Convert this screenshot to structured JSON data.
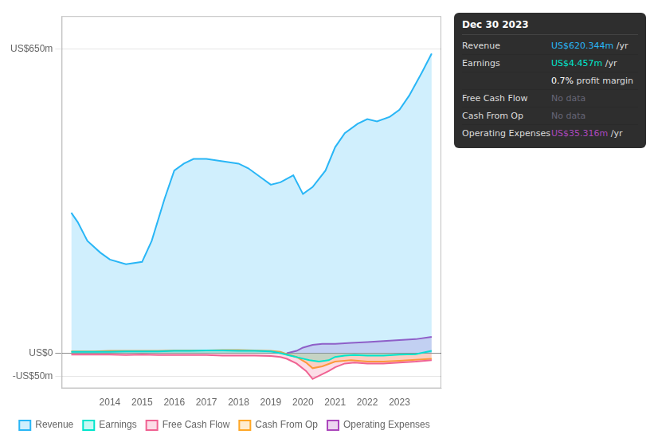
{
  "chart_data": {
    "type": "area",
    "xlim": [
      2012.5,
      2024.3
    ],
    "xticks": [
      2014,
      2015,
      2016,
      2017,
      2018,
      2019,
      2020,
      2021,
      2022,
      2023
    ],
    "ylim": [
      -75,
      720
    ],
    "yticks": [
      {
        "value": -50,
        "label": "-US$50m"
      },
      {
        "value": 0,
        "label": "US$0"
      },
      {
        "value": 650,
        "label": "US$650m"
      }
    ],
    "grid": true,
    "legend": "bottom",
    "series": [
      {
        "name": "Revenue",
        "color": "#29b6f6",
        "x": [
          2012.8,
          2013.0,
          2013.3,
          2013.7,
          2014.0,
          2014.5,
          2015.0,
          2015.3,
          2015.7,
          2016.0,
          2016.3,
          2016.6,
          2017.0,
          2017.5,
          2018.0,
          2018.3,
          2018.7,
          2019.0,
          2019.3,
          2019.7,
          2020.0,
          2020.3,
          2020.7,
          2021.0,
          2021.3,
          2021.7,
          2022.0,
          2022.3,
          2022.7,
          2023.0,
          2023.3,
          2023.7,
          2024.0
        ],
        "values": [
          300,
          280,
          240,
          215,
          200,
          190,
          195,
          240,
          330,
          390,
          405,
          415,
          415,
          410,
          405,
          395,
          375,
          360,
          365,
          380,
          340,
          355,
          390,
          440,
          470,
          490,
          500,
          495,
          505,
          520,
          550,
          600,
          640
        ]
      },
      {
        "name": "Earnings",
        "color": "#00e5cc",
        "x": [
          2012.8,
          2013.5,
          2014.0,
          2014.5,
          2015.0,
          2015.5,
          2016.0,
          2016.5,
          2017.0,
          2017.5,
          2018.0,
          2018.5,
          2019.0,
          2019.3,
          2019.6,
          2019.9,
          2020.2,
          2020.5,
          2020.8,
          2021.0,
          2021.3,
          2021.6,
          2022.0,
          2022.5,
          2023.0,
          2023.5,
          2024.0
        ],
        "values": [
          3,
          3,
          3,
          4,
          4,
          4,
          5,
          5,
          6,
          6,
          5,
          5,
          4,
          0,
          -5,
          -10,
          -15,
          -18,
          -15,
          -8,
          -5,
          -4,
          -5,
          -5,
          -3,
          -2,
          5
        ]
      },
      {
        "name": "Free Cash Flow",
        "color": "#f06292",
        "x": [
          2012.8,
          2013.5,
          2014.0,
          2014.5,
          2015.0,
          2015.5,
          2016.0,
          2016.5,
          2017.0,
          2017.5,
          2018.0,
          2018.5,
          2019.0,
          2019.3,
          2019.5,
          2019.8,
          2020.1,
          2020.3,
          2020.6,
          2020.8,
          2021.0,
          2021.3,
          2021.6,
          2022.0,
          2022.5,
          2023.0,
          2023.5,
          2024.0
        ],
        "values": [
          -3,
          -3,
          -3,
          -4,
          -3,
          -4,
          -4,
          -4,
          -4,
          -5,
          -5,
          -5,
          -6,
          -8,
          -12,
          -22,
          -38,
          -55,
          -45,
          -38,
          -30,
          -22,
          -20,
          -22,
          -22,
          -20,
          -18,
          -15
        ]
      },
      {
        "name": "Cash From Op",
        "color": "#ffa726",
        "x": [
          2012.8,
          2013.5,
          2014.0,
          2014.5,
          2015.0,
          2015.5,
          2016.0,
          2016.5,
          2017.0,
          2017.5,
          2018.0,
          2018.5,
          2019.0,
          2019.3,
          2019.5,
          2019.8,
          2020.1,
          2020.3,
          2020.6,
          2021.0,
          2021.5,
          2022.0,
          2022.5,
          2023.0,
          2023.5,
          2024.0
        ],
        "values": [
          4,
          4,
          5,
          5,
          5,
          5,
          6,
          6,
          6,
          7,
          7,
          6,
          5,
          3,
          -2,
          -8,
          -20,
          -32,
          -28,
          -18,
          -15,
          -18,
          -18,
          -16,
          -14,
          -12
        ]
      },
      {
        "name": "Operating Expenses",
        "color": "#ab47bc",
        "x": [
          2019.5,
          2019.8,
          2020.0,
          2020.3,
          2020.6,
          2021.0,
          2021.5,
          2022.0,
          2022.5,
          2023.0,
          2023.5,
          2024.0
        ],
        "values": [
          0,
          5,
          12,
          18,
          20,
          20,
          22,
          24,
          26,
          28,
          30,
          35
        ]
      }
    ],
    "annotations": [
      {
        "title": "Dec 30 2023",
        "rows": [
          {
            "label": "Revenue",
            "value": "US$620.344m",
            "unit": " /yr",
            "color": "#29b6f6"
          },
          {
            "label": "Earnings",
            "value": "US$4.457m",
            "unit": " /yr",
            "color": "#00e5cc"
          },
          {
            "value": "0.7%",
            "unit": " profit margin",
            "color": "#ffffff"
          },
          {
            "label": "Free Cash Flow",
            "value": "No data",
            "color": "#666677"
          },
          {
            "label": "Cash From Op",
            "value": "No data",
            "color": "#666677"
          },
          {
            "label": "Operating Expenses",
            "value": "US$35.316m",
            "unit": " /yr",
            "color": "#ab47bc"
          }
        ]
      }
    ]
  }
}
